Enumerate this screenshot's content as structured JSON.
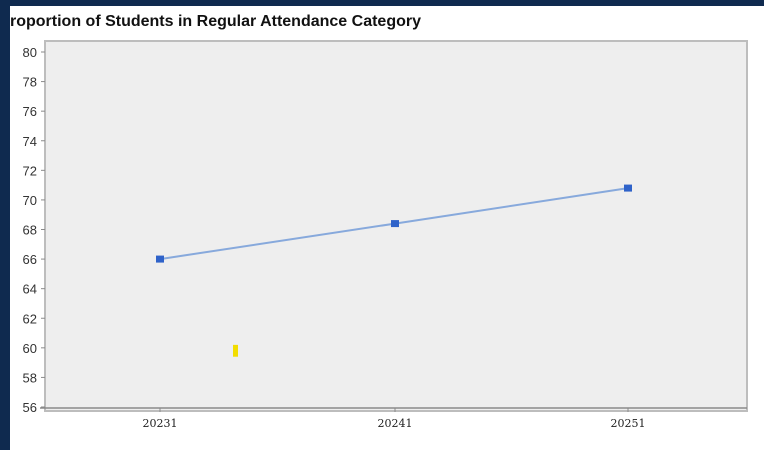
{
  "colors": {
    "frame": "#0f2a4f",
    "plot_background": "#eeeeee",
    "line": "#87a9dc",
    "marker": "#2e62c9",
    "highlight_mark": "#f2dd00"
  },
  "chart_data": {
    "type": "line",
    "title": "roportion of Students in Regular Attendance Category",
    "xlabel": "",
    "ylabel": "",
    "categories": [
      "20231",
      "20241",
      "20251"
    ],
    "series": [
      {
        "values": [
          66.0,
          68.4,
          70.8
        ]
      }
    ],
    "ylim": [
      56,
      80
    ],
    "yticks": [
      56,
      58,
      60,
      62,
      64,
      66,
      68,
      70,
      72,
      74,
      76,
      78,
      80
    ],
    "ytick_labels": [
      "56",
      "58",
      "60",
      "62",
      "64",
      "66",
      "68",
      "70",
      "72",
      "74",
      "76",
      "78",
      "80"
    ],
    "grid": false,
    "legend": "none",
    "annotations": [
      {
        "shape": "short vertical yellow bar",
        "y_range": [
          59.4,
          60.2
        ]
      }
    ]
  }
}
